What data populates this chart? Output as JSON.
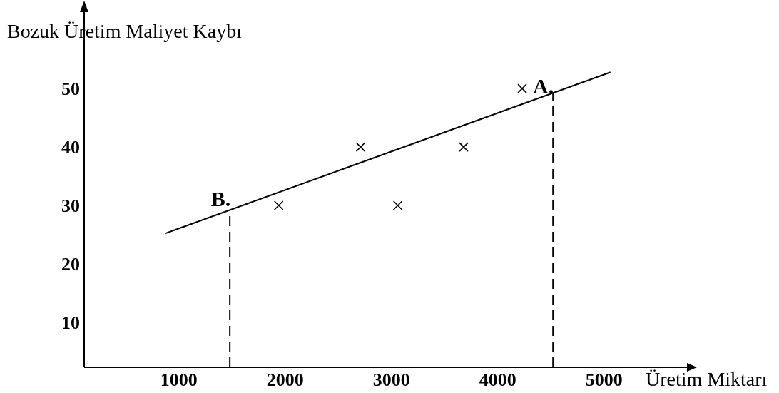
{
  "chart_data": {
    "type": "scatter",
    "ylabel": "Bozuk Üretim Maliyet Kaybı",
    "xlabel": "Üretim Miktarı",
    "xlim": [
      110,
      5780
    ],
    "ylim": [
      2.3,
      64.3
    ],
    "xticks": [
      1000,
      2000,
      3000,
      4000,
      5000
    ],
    "yticks": [
      10,
      20,
      30,
      40,
      50
    ],
    "grid": false,
    "series": [
      {
        "marker": "cross",
        "color": "#000000",
        "x": [
          1940,
          2710,
          3060,
          3680,
          4230
        ],
        "values": [
          30,
          40,
          30,
          40,
          50
        ]
      },
      {
        "type": "line",
        "color": "#000000",
        "x": [
          870,
          5060
        ],
        "values": [
          25.2,
          52.8
        ]
      }
    ],
    "ref_lines": [
      {
        "axis": "x",
        "value": 1480,
        "line_style": "dashed",
        "color": "#000000"
      },
      {
        "axis": "x",
        "value": 4520,
        "line_style": "dashed",
        "color": "#000000"
      }
    ],
    "annotations": [
      {
        "text": "B.",
        "x": 1480,
        "y": 29.6
      },
      {
        "text": "A.",
        "x": 4520,
        "y": 48.9
      }
    ]
  }
}
